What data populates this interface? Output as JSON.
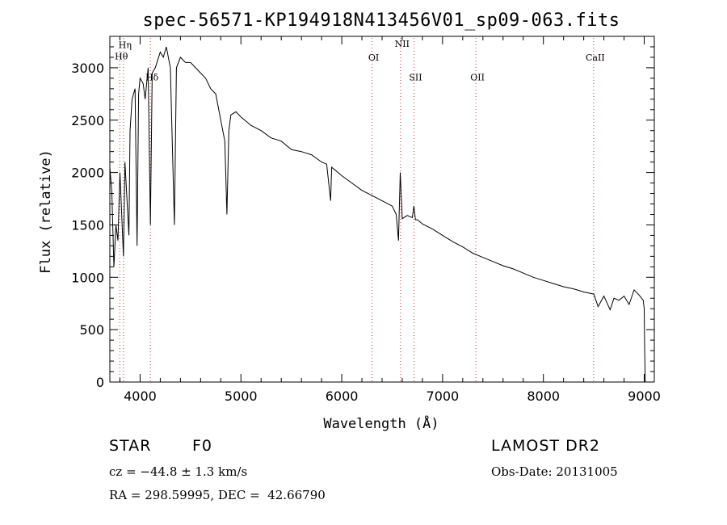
{
  "chart_data": {
    "type": "line",
    "title": "spec-56571-KP194918N413456V01_sp09-063.fits",
    "xlabel": "Wavelength (Å)",
    "ylabel": "Flux (relative)",
    "xlim": [
      3700,
      9100
    ],
    "ylim": [
      0,
      3300
    ],
    "xticks": [
      4000,
      5000,
      6000,
      7000,
      8000,
      9000
    ],
    "xtick_labels": [
      "4000",
      "5000",
      "6000",
      "7000",
      "8000",
      "9000"
    ],
    "yticks": [
      0,
      500,
      1000,
      1500,
      2000,
      2500,
      3000
    ],
    "ytick_labels": [
      "0",
      "500",
      "1000",
      "1500",
      "2000",
      "2500",
      "3000"
    ],
    "grid": false,
    "series": [
      {
        "color": "#000000",
        "x": [
          3700,
          3720,
          3740,
          3760,
          3780,
          3800,
          3835,
          3850,
          3889,
          3900,
          3920,
          3950,
          3970,
          3985,
          4000,
          4030,
          4050,
          4080,
          4102,
          4120,
          4150,
          4200,
          4230,
          4260,
          4300,
          4340,
          4360,
          4400,
          4450,
          4500,
          4550,
          4600,
          4650,
          4700,
          4750,
          4800,
          4840,
          4861,
          4880,
          4900,
          4950,
          5000,
          5100,
          5200,
          5300,
          5400,
          5500,
          5600,
          5700,
          5800,
          5850,
          5890,
          5900,
          6000,
          6100,
          6200,
          6300,
          6400,
          6500,
          6540,
          6563,
          6580,
          6600,
          6650,
          6700,
          6716,
          6731,
          6750,
          6800,
          6900,
          7000,
          7100,
          7200,
          7300,
          7400,
          7500,
          7600,
          7700,
          7800,
          7900,
          8000,
          8100,
          8200,
          8300,
          8400,
          8500,
          8542,
          8600,
          8662,
          8700,
          8750,
          8800,
          8850,
          8900,
          8950,
          8990,
          9000,
          9005,
          9010
        ],
        "y": [
          2050,
          1800,
          1100,
          1500,
          1350,
          2000,
          1200,
          2100,
          1400,
          2400,
          2700,
          2800,
          1300,
          2750,
          2900,
          2850,
          2700,
          3000,
          1500,
          2950,
          3000,
          3150,
          3100,
          3200,
          3000,
          1500,
          3000,
          3100,
          3050,
          3050,
          3000,
          2950,
          2900,
          2800,
          2750,
          2500,
          2300,
          1600,
          2400,
          2550,
          2580,
          2530,
          2450,
          2400,
          2330,
          2300,
          2220,
          2200,
          2170,
          2100,
          2080,
          1730,
          2050,
          1970,
          1900,
          1830,
          1780,
          1730,
          1680,
          1600,
          1350,
          2000,
          1560,
          1590,
          1570,
          1680,
          1550,
          1550,
          1510,
          1460,
          1400,
          1340,
          1290,
          1230,
          1190,
          1150,
          1110,
          1080,
          1040,
          1000,
          970,
          940,
          910,
          890,
          860,
          840,
          720,
          820,
          690,
          800,
          780,
          820,
          740,
          880,
          830,
          780,
          700,
          300,
          0
        ]
      }
    ],
    "line_markers": [
      {
        "label": "Hη",
        "x": 3835,
        "label_y": 3190
      },
      {
        "label": "Hθ",
        "x": 3798,
        "label_y": 3080
      },
      {
        "label": "Hδ",
        "x": 4102,
        "label_y": 2880
      },
      {
        "label": "OI",
        "x": 6300,
        "label_y": 3070
      },
      {
        "label": "NII",
        "x": 6583,
        "label_y": 3200
      },
      {
        "label": "SII",
        "x": 6716,
        "label_y": 2880
      },
      {
        "label": "OII",
        "x": 7330,
        "label_y": 2880
      },
      {
        "label": "CaII",
        "x": 8498,
        "label_y": 3070
      }
    ]
  },
  "info": {
    "object_class": "STAR",
    "subclass": "F0",
    "survey": "LAMOST DR2",
    "cz": "cz = −44.8 ± 1.3 km/s",
    "obs_date": "Obs-Date: 20131005",
    "coords": "RA = 298.59995, DEC =  42.66790"
  }
}
